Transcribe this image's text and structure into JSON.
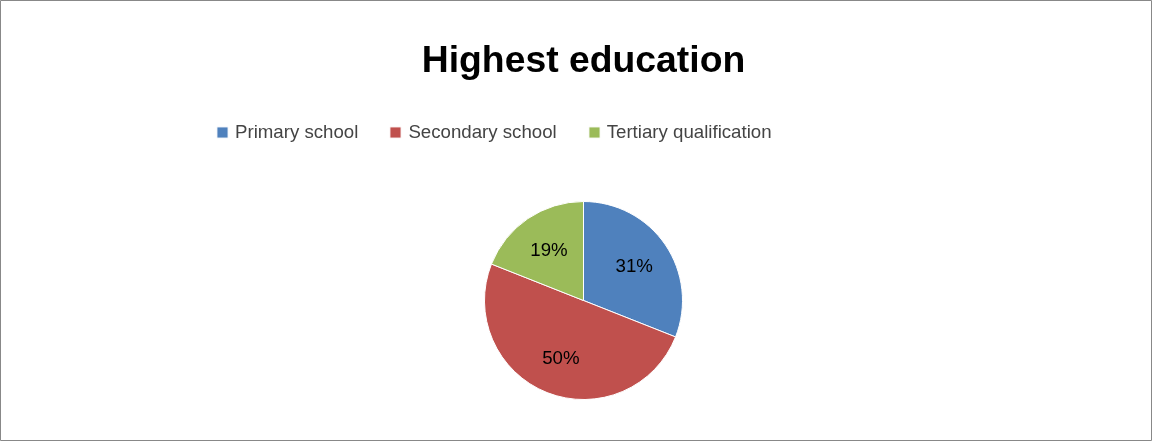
{
  "chart_data": {
    "type": "pie",
    "title": "Highest education",
    "categories": [
      "Primary school",
      "Secondary school",
      "Tertiary qualification"
    ],
    "values": [
      31,
      50,
      19
    ],
    "colors": [
      "#4f81bd",
      "#c0504d",
      "#9bbb59"
    ],
    "value_labels": [
      "31%",
      "50%",
      "19%"
    ],
    "legend": "top"
  }
}
